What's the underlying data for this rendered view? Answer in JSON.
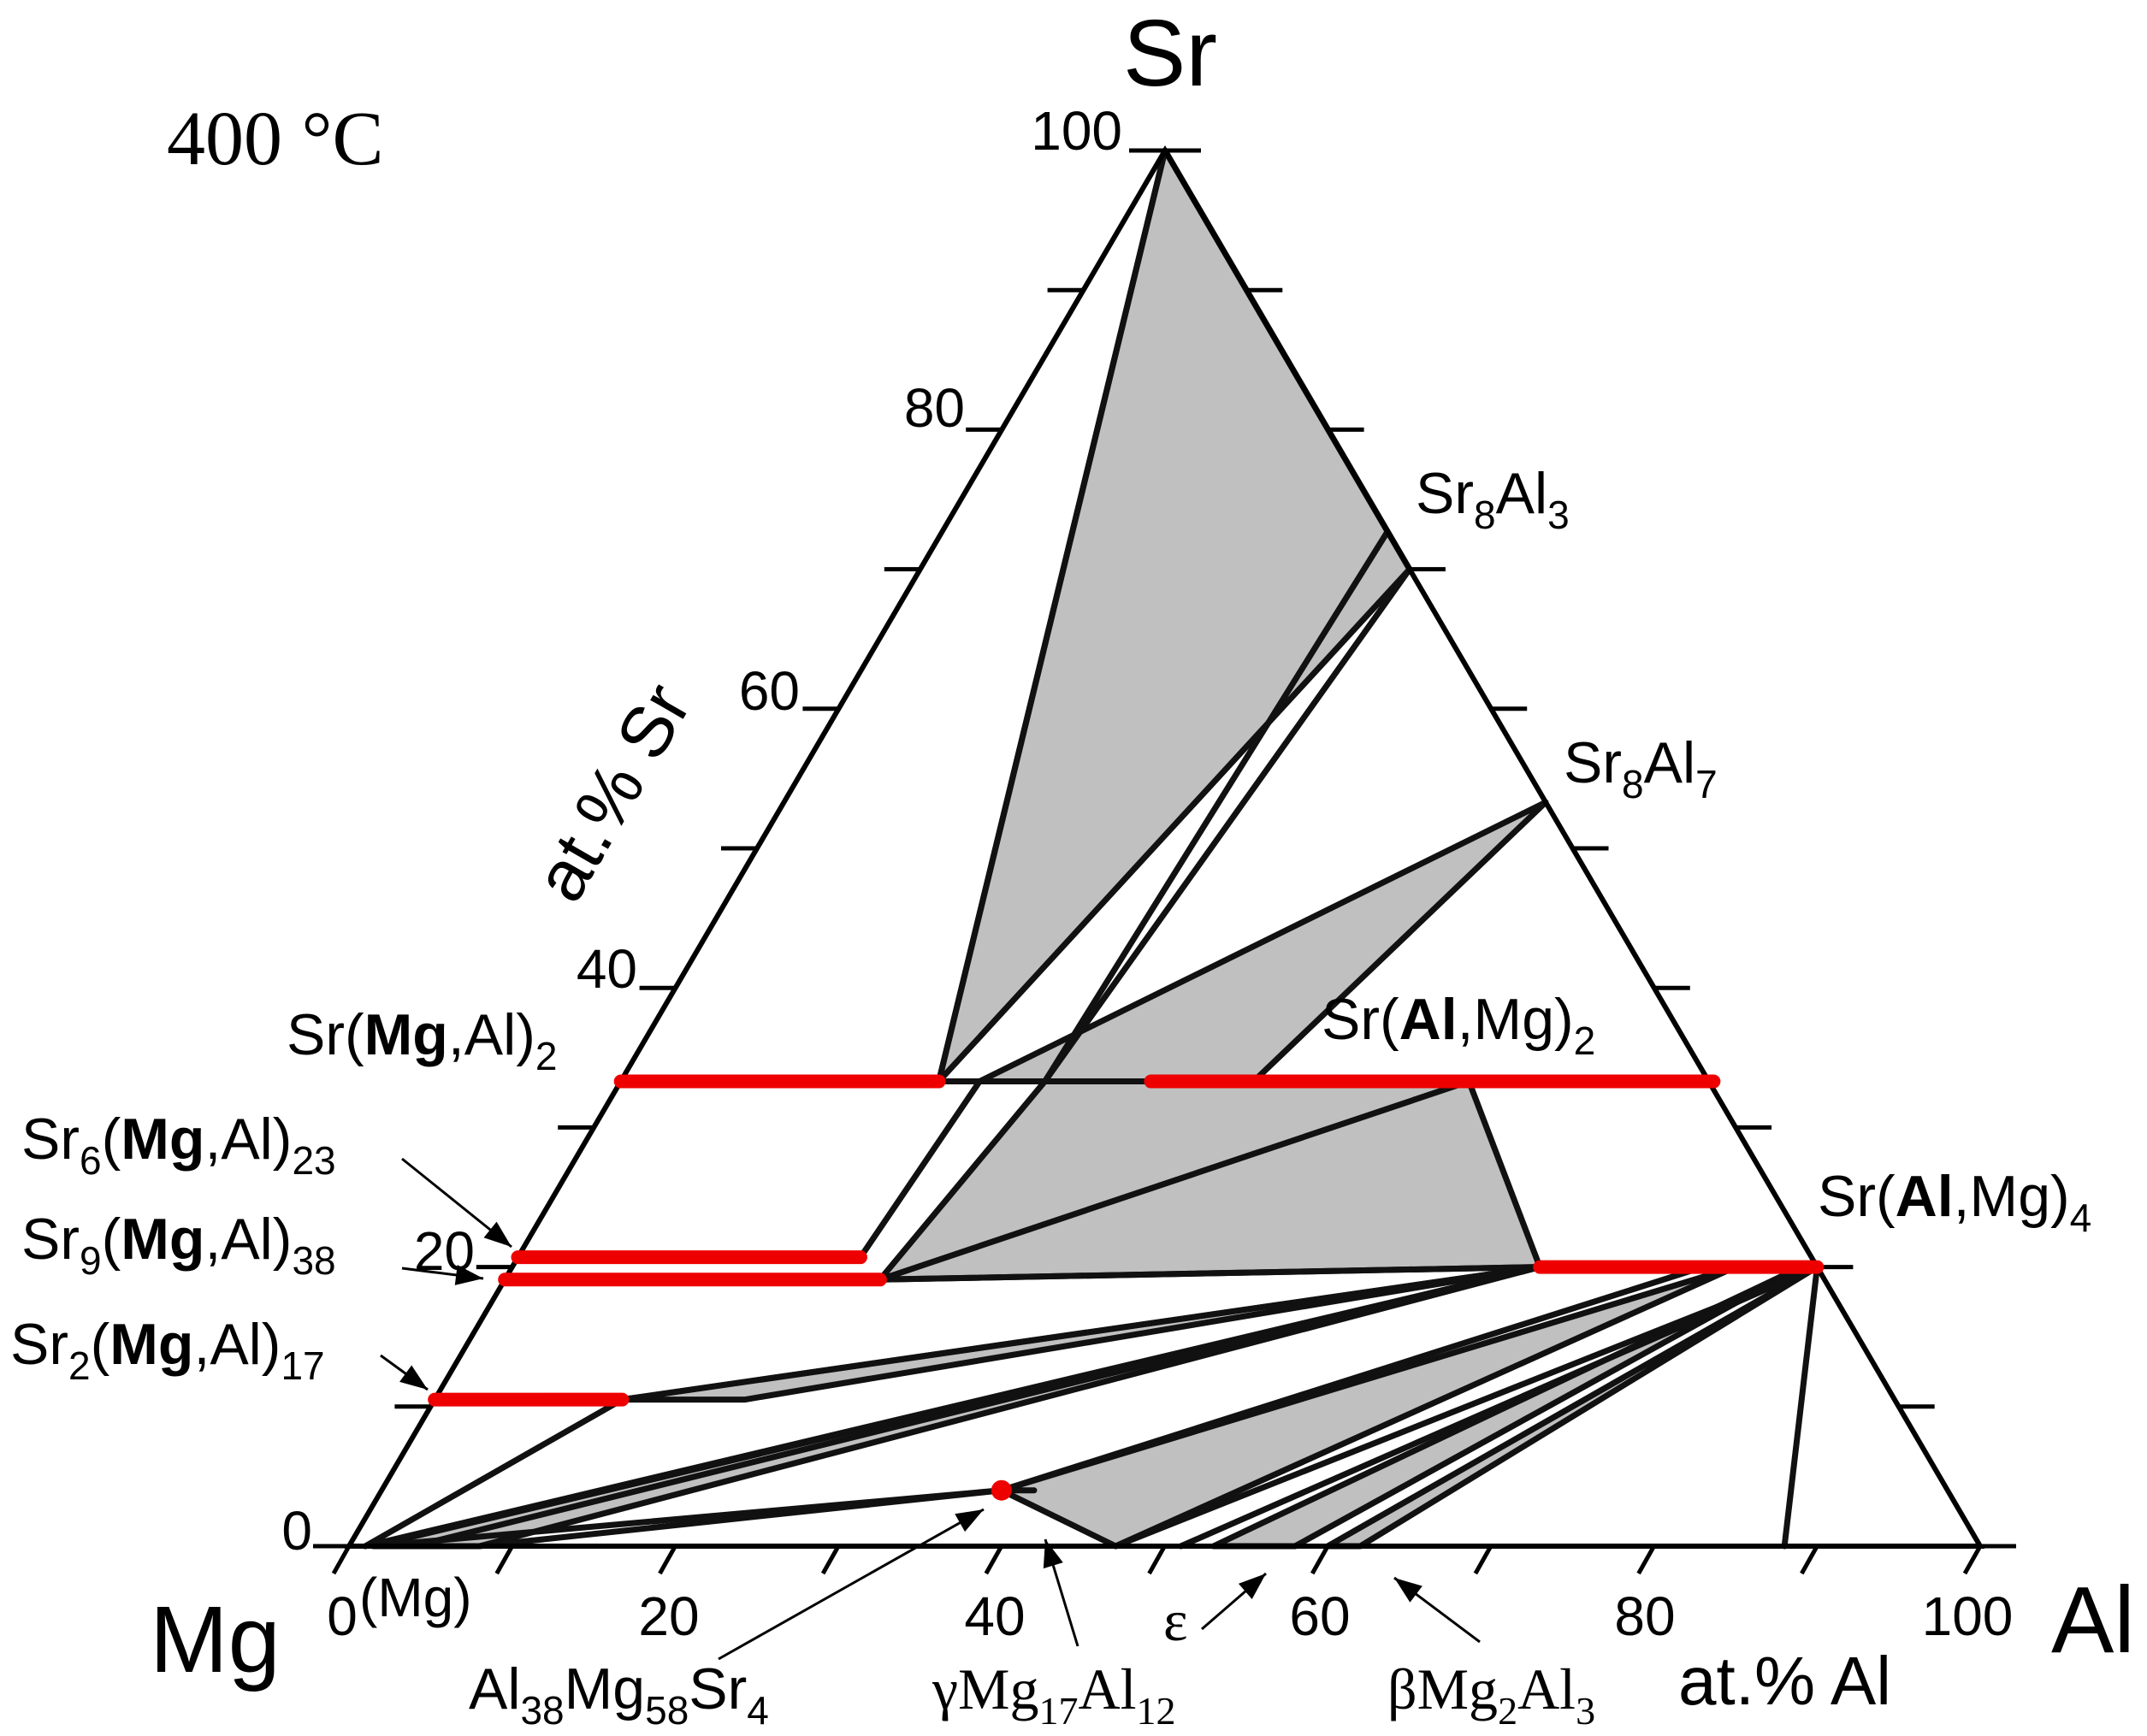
{
  "chart_data": {
    "type": "ternary-phase-diagram",
    "temperature_label": "400 °C",
    "vertices": {
      "top": "Sr",
      "left": "Mg",
      "right": "Al"
    },
    "axis_labels": {
      "sr": "at.% Sr",
      "al": "at.% Al"
    },
    "sr_ticks": [
      "100",
      "80",
      "60",
      "40",
      "20",
      "0"
    ],
    "al_ticks": [
      "0",
      "20",
      "40",
      "60",
      "80",
      "100"
    ],
    "mg_corner_label": "(Mg)",
    "phases": {
      "sr8al3": {
        "base": "Sr",
        "s1": "8",
        "mid": "Al",
        "s2": "3"
      },
      "sr8al7": {
        "base": "Sr",
        "s1": "8",
        "mid": "Al",
        "s2": "7"
      },
      "sr_al_mg_2": {
        "pre": "Sr(",
        "bold": "Al",
        "post": ",Mg)",
        "sub": "2"
      },
      "sr_al_mg_4": {
        "pre": "Sr(",
        "bold": "Al",
        "post": ",Mg)",
        "sub": "4"
      },
      "sr_mg_al_2": {
        "pre": "Sr(",
        "bold": "Mg",
        "post": ",Al)",
        "sub": "2"
      },
      "sr6": {
        "pre": "Sr",
        "presub": "6",
        "mid": "(",
        "bold": "Mg",
        "post": ",Al)",
        "sub": "23"
      },
      "sr9": {
        "pre": "Sr",
        "presub": "9",
        "mid": "(",
        "bold": "Mg",
        "post": ",Al)",
        "sub": "38"
      },
      "sr2": {
        "pre": "Sr",
        "presub": "2",
        "mid": "(",
        "bold": "Mg",
        "post": ",Al)",
        "sub": "17"
      },
      "al38": {
        "a": "Al",
        "as": "38",
        "b": "Mg",
        "bs": "58",
        "c": "Sr",
        "cs": "4"
      },
      "gamma": {
        "a": "γMg",
        "as": "17",
        "b": "Al",
        "bs": "12"
      },
      "epsilon": "ε",
      "beta": {
        "a": "βMg",
        "as": "2",
        "b": "Al",
        "bs": "3"
      }
    },
    "compounds_sr_al": [
      {
        "name": "Sr8Al3",
        "al": 27.3
      },
      {
        "name": "Sr8Al7",
        "al": 46.7
      },
      {
        "name": "Sr(Al,Mg)4",
        "al": 80.0
      }
    ],
    "solid_solutions": [
      {
        "name": "Sr(Mg,Al)2",
        "sr": 33.3,
        "al_range": [
          0,
          19.5
        ]
      },
      {
        "name": "Sr(Al,Mg)2",
        "sr": 33.3,
        "al_range": [
          32.5,
          67
        ]
      },
      {
        "name": "Sr6(Mg,Al)23",
        "sr": 20.7,
        "al_range": [
          0,
          21
        ]
      },
      {
        "name": "Sr9(Mg,Al)38",
        "sr": 19.1,
        "al_range": [
          0,
          23
        ]
      },
      {
        "name": "Sr(Al,Mg)4",
        "sr": 20.0,
        "al_range": [
          63,
          80
        ]
      },
      {
        "name": "Sr2(Mg,Al)17",
        "sr": 10.5,
        "al_range": [
          0,
          11.5
        ]
      }
    ],
    "point_compound": {
      "name": "Al38Mg58Sr4",
      "sr": 4,
      "al": 38
    },
    "three_phase_triangles": [
      [
        [
          100,
          0
        ],
        [
          33.3,
          19.5
        ],
        [
          70,
          30
        ]
      ],
      [
        [
          33.3,
          38.8
        ],
        [
          53.3,
          46.7
        ],
        [
          33.3,
          22
        ]
      ],
      [
        [
          33.3,
          26
        ],
        [
          33.3,
          52
        ],
        [
          19.1,
          23
        ]
      ],
      [
        [
          19.1,
          23
        ],
        [
          33.3,
          52
        ],
        [
          20,
          63
        ]
      ],
      [
        [
          10.5,
          11.5
        ],
        [
          20,
          63
        ],
        [
          10.5,
          19
        ]
      ],
      [
        [
          0,
          1.5
        ],
        [
          20,
          63
        ],
        [
          0,
          8
        ]
      ],
      [
        [
          4,
          38
        ],
        [
          0,
          47
        ],
        [
          20,
          75
        ]
      ],
      [
        [
          0,
          53
        ],
        [
          20,
          79
        ],
        [
          0,
          58
        ]
      ],
      [
        [
          0,
          60
        ],
        [
          20,
          80
        ],
        [
          0,
          62
        ]
      ]
    ],
    "tie_lines": [
      [
        [
          100,
          0
        ],
        [
          33.3,
          19.5
        ]
      ],
      [
        [
          70,
          30
        ],
        [
          33.3,
          26
        ]
      ],
      [
        [
          72.7,
          27.3
        ],
        [
          33.3,
          26
        ]
      ],
      [
        [
          33.3,
          22
        ],
        [
          20.7,
          21
        ]
      ],
      [
        [
          33.3,
          19.5
        ],
        [
          33.3,
          32.5
        ]
      ],
      [
        [
          33.3,
          22
        ],
        [
          33.3,
          32.5
        ]
      ],
      [
        [
          19.1,
          23
        ],
        [
          20,
          63
        ]
      ],
      [
        [
          10.5,
          11.5
        ],
        [
          20,
          63
        ]
      ],
      [
        [
          0,
          1
        ],
        [
          10.5,
          11.5
        ]
      ],
      [
        [
          0,
          1
        ],
        [
          20,
          63
        ]
      ],
      [
        [
          0,
          4
        ],
        [
          20,
          63
        ]
      ],
      [
        [
          0,
          1.5
        ],
        [
          4,
          38
        ]
      ],
      [
        [
          0,
          8
        ],
        [
          4,
          38
        ]
      ],
      [
        [
          4,
          38
        ],
        [
          20,
          73
        ]
      ],
      [
        [
          4,
          38
        ],
        [
          4,
          40
        ]
      ],
      [
        [
          0,
          47
        ],
        [
          20,
          80
        ]
      ],
      [
        [
          0,
          51
        ],
        [
          20,
          80
        ]
      ],
      [
        [
          0,
          88
        ],
        [
          20,
          80
        ]
      ]
    ]
  }
}
